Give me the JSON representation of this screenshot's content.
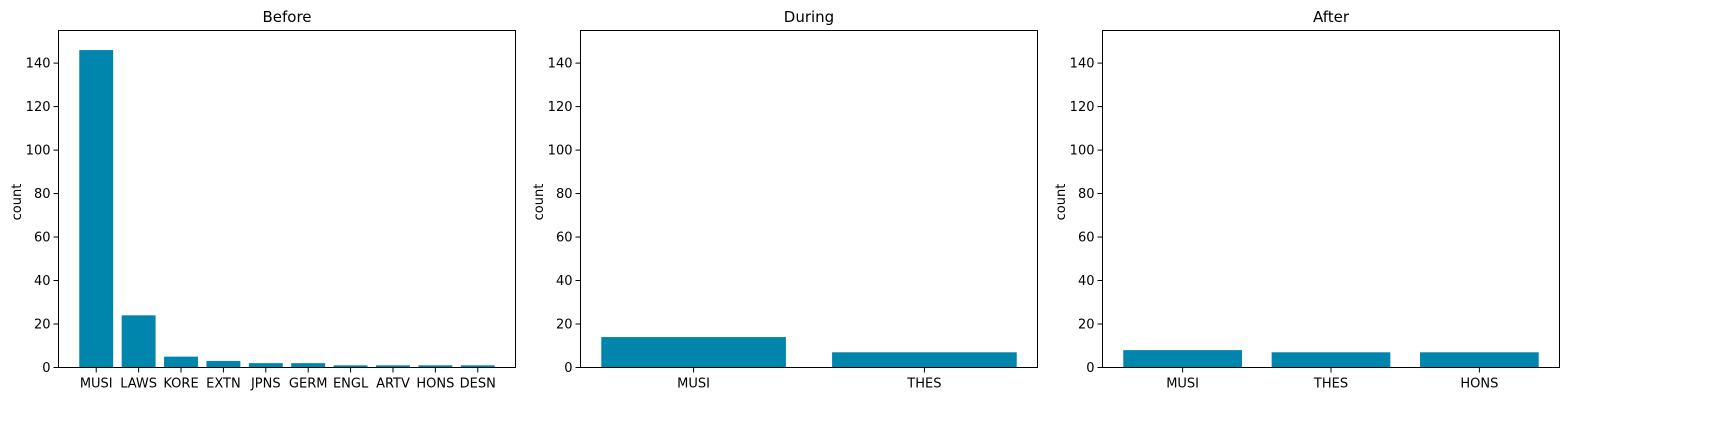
{
  "bar_color": "#0086ad",
  "chart_data": [
    {
      "type": "bar",
      "title": "Before",
      "xlabel": "",
      "ylabel": "count",
      "ylim": [
        0,
        155
      ],
      "yticks": [
        "0",
        "20",
        "40",
        "60",
        "80",
        "100",
        "120",
        "140"
      ],
      "categories": [
        "MUSI",
        "LAWS",
        "KORE",
        "EXTN",
        "JPNS",
        "GERM",
        "ENGL",
        "ARTV",
        "HONS",
        "DESN"
      ],
      "values": [
        146,
        24,
        5,
        3,
        2,
        2,
        1,
        1,
        1,
        1
      ]
    },
    {
      "type": "bar",
      "title": "During",
      "xlabel": "",
      "ylabel": "count",
      "ylim": [
        0,
        155
      ],
      "yticks": [
        "0",
        "20",
        "40",
        "60",
        "80",
        "100",
        "120",
        "140"
      ],
      "categories": [
        "MUSI",
        "THES"
      ],
      "values": [
        14,
        7
      ]
    },
    {
      "type": "bar",
      "title": "After",
      "xlabel": "",
      "ylabel": "count",
      "ylim": [
        0,
        155
      ],
      "yticks": [
        "0",
        "20",
        "40",
        "60",
        "80",
        "100",
        "120",
        "140"
      ],
      "categories": [
        "MUSI",
        "THES",
        "HONS"
      ],
      "values": [
        8,
        7,
        7
      ]
    }
  ]
}
